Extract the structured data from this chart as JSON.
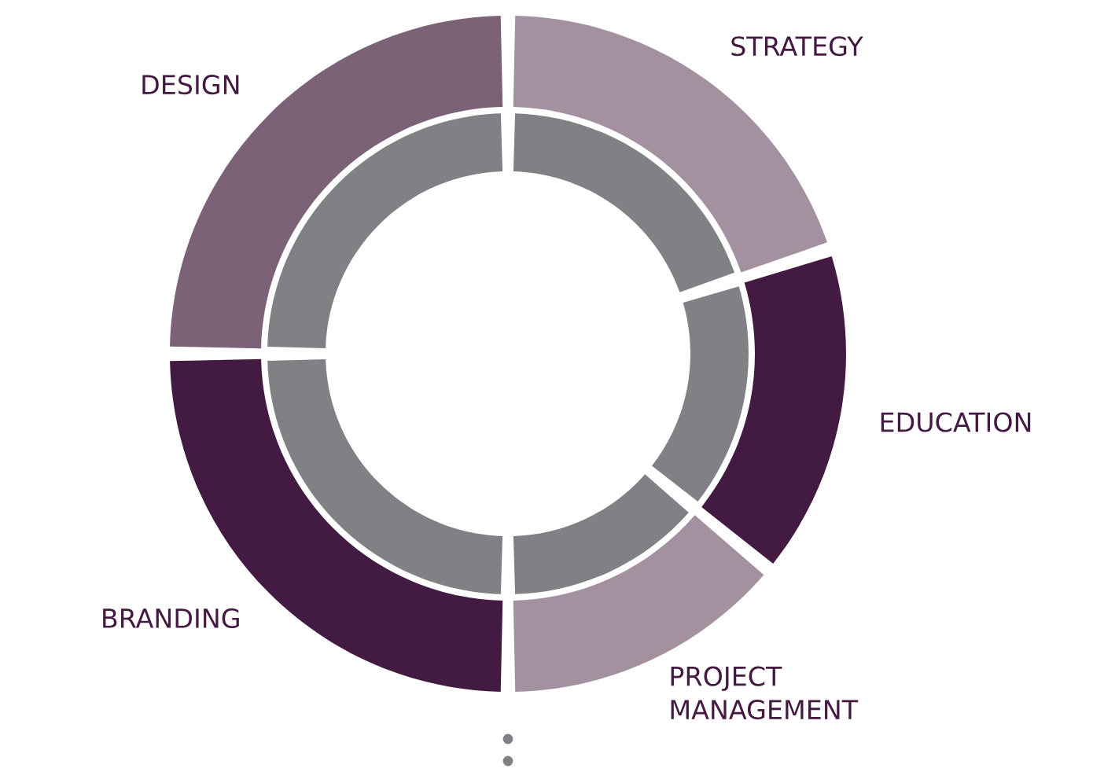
{
  "chart_data": {
    "type": "donut",
    "categories": [
      "STRATEGY",
      "EDUCATION",
      "PROJECT MANAGEMENT",
      "BRANDING",
      "DESIGN"
    ],
    "series": [
      {
        "values": [
          20,
          16,
          14,
          25,
          25
        ],
        "colors": [
          "#a3919f",
          "#431a41",
          "#a3919f",
          "#431a41",
          "#7b6276"
        ]
      },
      {
        "values": [
          20,
          16,
          14,
          25,
          25
        ],
        "color": "#7f8184"
      }
    ]
  }
}
